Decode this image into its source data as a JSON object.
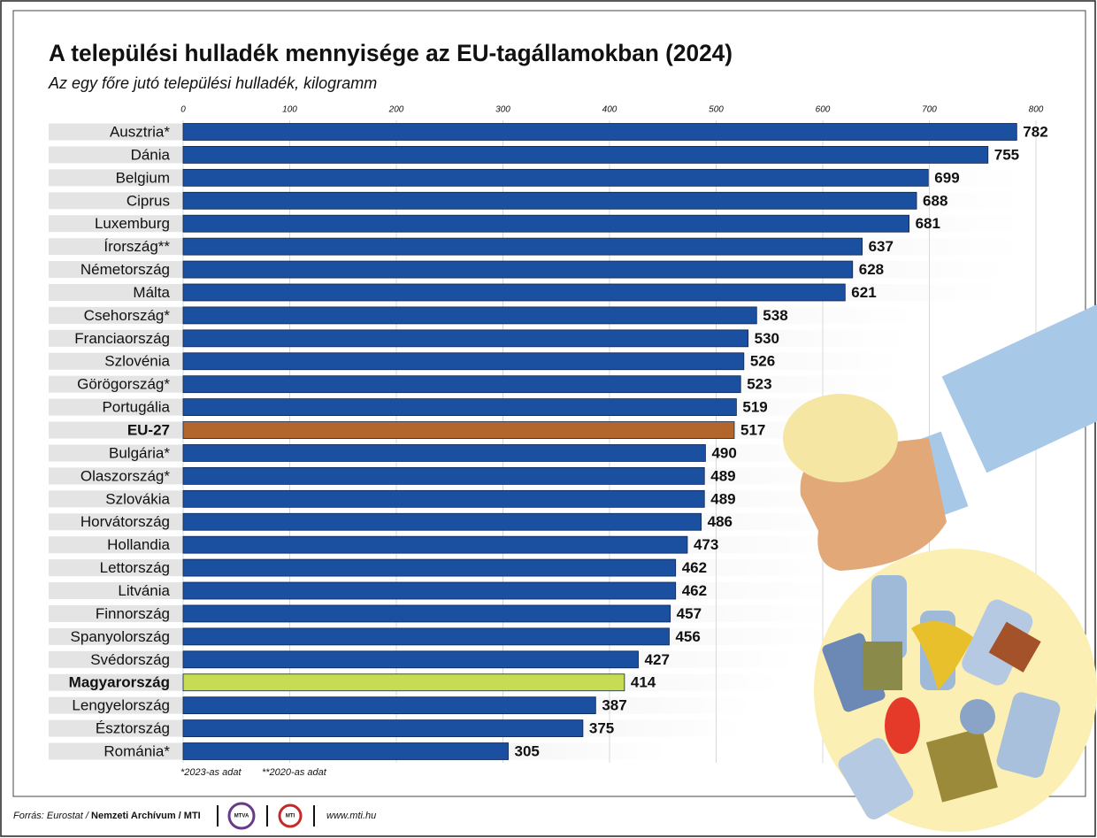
{
  "chart_data": {
    "type": "bar",
    "orientation": "horizontal",
    "title": "A települési hulladék mennyisége az EU-tagállamokban (2024)",
    "subtitle": "Az egy főre jutó települési hulladék, kilogramm",
    "categories": [
      "Ausztria*",
      "Dánia",
      "Belgium",
      "Ciprus",
      "Luxemburg",
      "Írország**",
      "Németország",
      "Málta",
      "Csehország*",
      "Franciaország",
      "Szlovénia",
      "Görögország*",
      "Portugália",
      "EU-27",
      "Bulgária*",
      "Olaszország*",
      "Szlovákia",
      "Horvátország",
      "Hollandia",
      "Lettország",
      "Litvánia",
      "Finnország",
      "Spanyolország",
      "Svédország",
      "Magyarország",
      "Lengyelország",
      "Észtország",
      "Románia*"
    ],
    "values": [
      782,
      755,
      699,
      688,
      681,
      637,
      628,
      621,
      538,
      530,
      526,
      523,
      519,
      517,
      490,
      489,
      489,
      486,
      473,
      462,
      462,
      457,
      456,
      427,
      414,
      387,
      375,
      305
    ],
    "color": "#1b4f9f",
    "highlight_colors": {
      "13": "#b3662c",
      "24": "#c7dc52"
    },
    "bold_categories": [
      13,
      24
    ],
    "xlim": [
      0,
      800
    ],
    "xticks": [
      0,
      100,
      200,
      300,
      400,
      500,
      600,
      700,
      800
    ],
    "grid": true,
    "footnotes": [
      "*2023-as adat",
      "**2020-as adat"
    ],
    "source": {
      "prefix": "Forrás: Eurostat /",
      "name": "Nemzeti Archívum",
      "suffix": "/ MTI",
      "logos": [
        "MTVA",
        "MTI"
      ],
      "url": "www.mti.hu"
    }
  }
}
